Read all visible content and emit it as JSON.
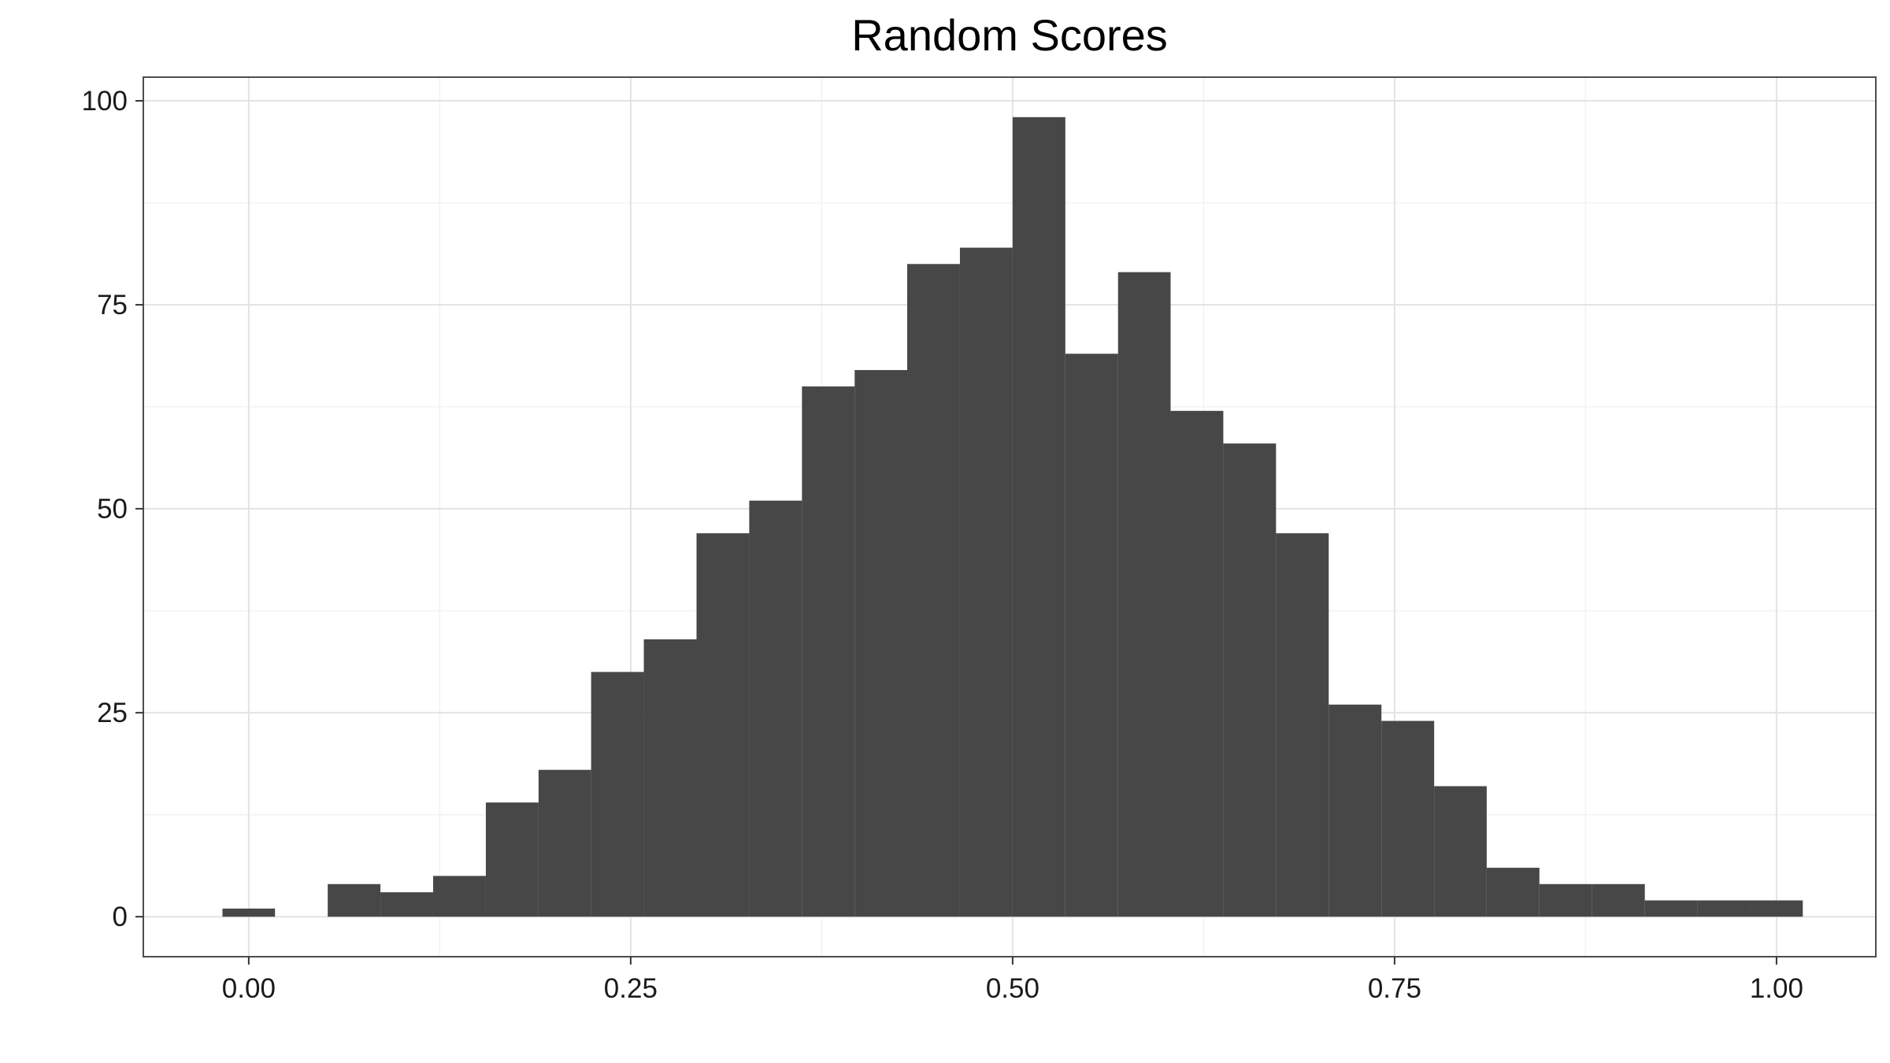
{
  "chart_data": {
    "type": "bar",
    "title": "Random Scores",
    "xlabel": "",
    "ylabel": "",
    "x_ticks": [
      "0.00",
      "0.25",
      "0.50",
      "0.75",
      "1.00"
    ],
    "x_tick_values": [
      0,
      0.25,
      0.5,
      0.75,
      1.0
    ],
    "y_ticks": [
      "0",
      "25",
      "50",
      "75",
      "100"
    ],
    "y_tick_values": [
      0,
      25,
      50,
      75,
      100
    ],
    "xlim": [
      -0.069,
      1.065
    ],
    "ylim": [
      -4.9,
      102.9
    ],
    "bin_width": 0.0345,
    "bins": [
      {
        "x0": -0.0172,
        "x1": 0.0172,
        "count": 1
      },
      {
        "x0": 0.0172,
        "x1": 0.0517,
        "count": 0
      },
      {
        "x0": 0.0517,
        "x1": 0.0862,
        "count": 4
      },
      {
        "x0": 0.0862,
        "x1": 0.1207,
        "count": 3
      },
      {
        "x0": 0.1207,
        "x1": 0.1552,
        "count": 5
      },
      {
        "x0": 0.1552,
        "x1": 0.1897,
        "count": 14
      },
      {
        "x0": 0.1897,
        "x1": 0.2241,
        "count": 18
      },
      {
        "x0": 0.2241,
        "x1": 0.2586,
        "count": 30
      },
      {
        "x0": 0.2586,
        "x1": 0.2931,
        "count": 34
      },
      {
        "x0": 0.2931,
        "x1": 0.3276,
        "count": 47
      },
      {
        "x0": 0.3276,
        "x1": 0.3621,
        "count": 51
      },
      {
        "x0": 0.3621,
        "x1": 0.3966,
        "count": 65
      },
      {
        "x0": 0.3966,
        "x1": 0.431,
        "count": 67
      },
      {
        "x0": 0.431,
        "x1": 0.4655,
        "count": 80
      },
      {
        "x0": 0.4655,
        "x1": 0.5,
        "count": 82
      },
      {
        "x0": 0.5,
        "x1": 0.5345,
        "count": 98
      },
      {
        "x0": 0.5345,
        "x1": 0.569,
        "count": 69
      },
      {
        "x0": 0.569,
        "x1": 0.6034,
        "count": 79
      },
      {
        "x0": 0.6034,
        "x1": 0.6379,
        "count": 62
      },
      {
        "x0": 0.6379,
        "x1": 0.6724,
        "count": 58
      },
      {
        "x0": 0.6724,
        "x1": 0.7069,
        "count": 47
      },
      {
        "x0": 0.7069,
        "x1": 0.7414,
        "count": 26
      },
      {
        "x0": 0.7414,
        "x1": 0.7759,
        "count": 24
      },
      {
        "x0": 0.7759,
        "x1": 0.8103,
        "count": 16
      },
      {
        "x0": 0.8103,
        "x1": 0.8448,
        "count": 6
      },
      {
        "x0": 0.8448,
        "x1": 0.8793,
        "count": 4
      },
      {
        "x0": 0.8793,
        "x1": 0.9138,
        "count": 4
      },
      {
        "x0": 0.9138,
        "x1": 0.9483,
        "count": 2
      },
      {
        "x0": 0.9483,
        "x1": 0.9828,
        "count": 2
      },
      {
        "x0": 0.9828,
        "x1": 1.0172,
        "count": 2
      }
    ],
    "grid": true,
    "legend": "none",
    "colors": {
      "bar_fill": "#474747",
      "background": "#ffffff",
      "grid_major": "#e3e3e3",
      "grid_minor": "#f2f2f2",
      "panel_border": "#4d4d4d",
      "text": "#1a1a1a"
    }
  }
}
